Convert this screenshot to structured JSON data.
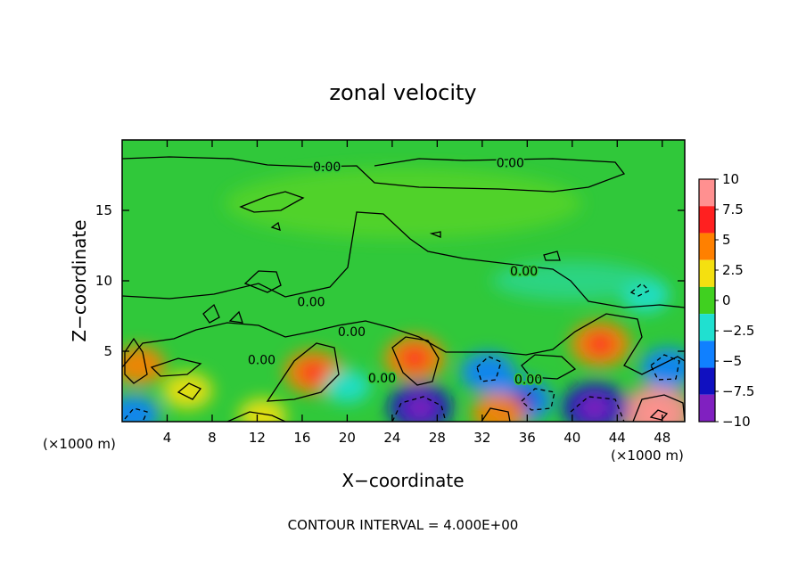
{
  "chart_data": {
    "type": "heatmap",
    "title": "zonal velocity",
    "xlabel": "X−coordinate",
    "ylabel": "Z−coordinate",
    "x_unit": "(×1000 m)",
    "y_unit": "(×1000 m)",
    "xlim": [
      0,
      50
    ],
    "ylim": [
      0,
      20
    ],
    "x_ticks": [
      4,
      8,
      12,
      16,
      20,
      24,
      28,
      32,
      36,
      40,
      44,
      48
    ],
    "y_ticks": [
      5,
      10,
      15
    ],
    "footer": "CONTOUR INTERVAL = 4.000E+00",
    "contour_interval": 4.0,
    "colorbar": {
      "range": [
        -10,
        10
      ],
      "labels": [
        "10",
        "7.5",
        "5",
        "2.5",
        "0",
        "−2.5",
        "−5",
        "−7.5",
        "−10"
      ],
      "levels": [
        10,
        7.5,
        5,
        2.5,
        0,
        -2.5,
        -5,
        -7.5,
        -10
      ],
      "colors": [
        "#ff9090",
        "#ff2020",
        "#ff8000",
        "#f4e010",
        "#40d020",
        "#20e0d0",
        "#1080ff",
        "#1010c0",
        "#8020c0"
      ]
    },
    "contour_labels": [
      {
        "text": "0.00",
        "x": 18.2,
        "z": 18.1
      },
      {
        "text": "0.00",
        "x": 34.5,
        "z": 18.4
      },
      {
        "text": "0.00",
        "x": 35.7,
        "z": 10.7
      },
      {
        "text": "0.00",
        "x": 16.8,
        "z": 8.5
      },
      {
        "text": "0.00",
        "x": 20.4,
        "z": 6.4
      },
      {
        "text": "0.00",
        "x": 12.4,
        "z": 4.4
      },
      {
        "text": "0.00",
        "x": 23.1,
        "z": 3.1
      },
      {
        "text": "0.00",
        "x": 36.1,
        "z": 3.0
      }
    ],
    "features": [
      {
        "x": 17.0,
        "z": 3.5,
        "value": 5.5
      },
      {
        "x": 26.0,
        "z": 4.5,
        "value": 6.0
      },
      {
        "x": 42.5,
        "z": 5.5,
        "value": 6.0
      },
      {
        "x": 47.5,
        "z": 0.6,
        "value": 9.0
      },
      {
        "x": 1.5,
        "z": 4.0,
        "value": 4.0
      },
      {
        "x": 5.8,
        "z": 2.2,
        "value": 3.5
      },
      {
        "x": 26.5,
        "z": 1.0,
        "value": -7.0
      },
      {
        "x": 42.0,
        "z": 1.0,
        "value": -7.5
      },
      {
        "x": 35.5,
        "z": 1.5,
        "value": -6.0
      },
      {
        "x": 32.5,
        "z": 3.5,
        "value": -4.5
      },
      {
        "x": 48.5,
        "z": 3.8,
        "value": -4.5
      },
      {
        "x": 46.5,
        "z": 9.0,
        "value": -3.0
      },
      {
        "x": 1.0,
        "z": 0.5,
        "value": -4.0
      },
      {
        "x": 33.5,
        "z": 0.6,
        "value": 4.5
      },
      {
        "x": 12.5,
        "z": 0.4,
        "value": 3.0
      },
      {
        "x": 20.0,
        "z": 2.5,
        "value": -2.5
      }
    ]
  }
}
